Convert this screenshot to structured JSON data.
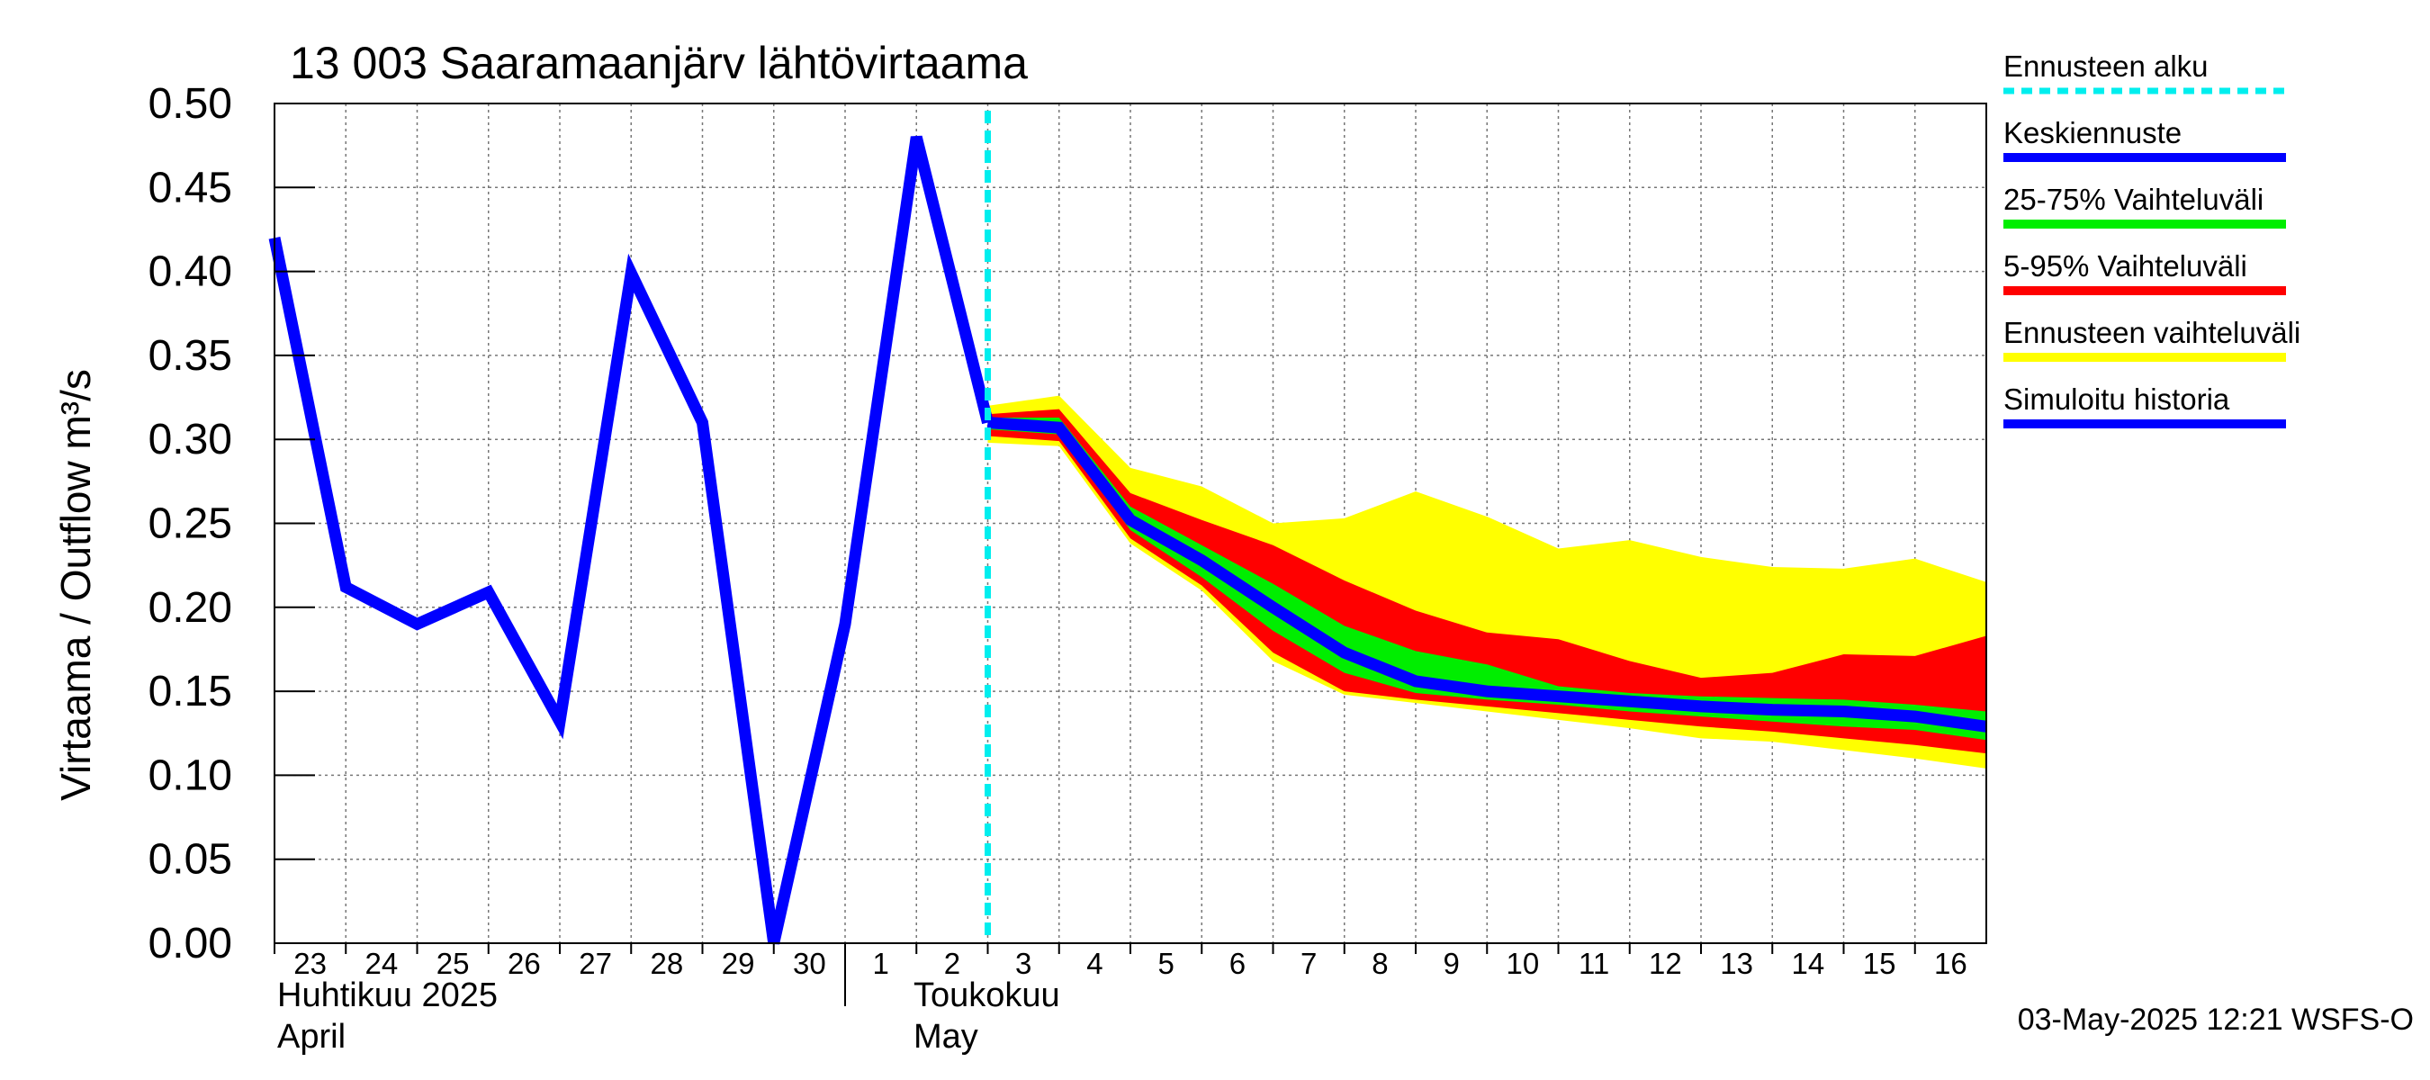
{
  "chart_data": {
    "type": "area",
    "title": "13 003 Saaramaanjärv lähtövirtaama",
    "ylabel": "Virtaama / Outflow    m³/s",
    "ylim": [
      0,
      0.5
    ],
    "yticks": [
      "0.00",
      "0.05",
      "0.10",
      "0.15",
      "0.20",
      "0.25",
      "0.30",
      "0.35",
      "0.40",
      "0.45",
      "0.50"
    ],
    "x_days": [
      "23",
      "24",
      "25",
      "26",
      "27",
      "28",
      "29",
      "30",
      "1",
      "2",
      "3",
      "4",
      "5",
      "6",
      "7",
      "8",
      "9",
      "10",
      "11",
      "12",
      "13",
      "14",
      "15",
      "16"
    ],
    "month_labels": [
      {
        "fi": "Huhtikuu  2025",
        "en": "April"
      },
      {
        "fi": "Toukokuu",
        "en": "May"
      }
    ],
    "forecast_start": "2025-05-03 00:00",
    "grid": true,
    "series": [
      {
        "name": "Simuloitu historia",
        "color": "#0000ff",
        "x": [
          "2025-04-23",
          "2025-04-24",
          "2025-04-25",
          "2025-04-26",
          "2025-04-27",
          "2025-04-28",
          "2025-04-29",
          "2025-04-30",
          "2025-05-01",
          "2025-05-02",
          "2025-05-03"
        ],
        "values": [
          0.42,
          0.212,
          0.19,
          0.209,
          0.132,
          0.399,
          0.31,
          0.0,
          0.19,
          0.48,
          0.31
        ]
      },
      {
        "name": "Keskiennuste",
        "color": "#0000ff",
        "x": [
          "2025-05-03",
          "2025-05-04",
          "2025-05-05",
          "2025-05-06",
          "2025-05-07",
          "2025-05-08",
          "2025-05-09",
          "2025-05-10",
          "2025-05-11",
          "2025-05-12",
          "2025-05-13",
          "2025-05-14",
          "2025-05-15",
          "2025-05-16",
          "2025-05-17"
        ],
        "values": [
          0.31,
          0.307,
          0.252,
          0.228,
          0.2,
          0.173,
          0.156,
          0.15,
          0.147,
          0.144,
          0.141,
          0.139,
          0.138,
          0.135,
          0.129
        ]
      }
    ],
    "bands": [
      {
        "name": "Ennusteen vaihteluväli",
        "color": "#ffff00",
        "x": [
          "2025-05-03",
          "2025-05-04",
          "2025-05-05",
          "2025-05-06",
          "2025-05-07",
          "2025-05-08",
          "2025-05-09",
          "2025-05-10",
          "2025-05-11",
          "2025-05-12",
          "2025-05-13",
          "2025-05-14",
          "2025-05-15",
          "2025-05-16",
          "2025-05-17"
        ],
        "upper": [
          0.32,
          0.326,
          0.283,
          0.272,
          0.25,
          0.253,
          0.269,
          0.254,
          0.235,
          0.24,
          0.23,
          0.224,
          0.223,
          0.229,
          0.215
        ],
        "lower": [
          0.298,
          0.296,
          0.238,
          0.21,
          0.168,
          0.148,
          0.143,
          0.138,
          0.133,
          0.128,
          0.122,
          0.12,
          0.115,
          0.11,
          0.104
        ]
      },
      {
        "name": "5-95% Vaihteluväli",
        "color": "#ff0000",
        "x": [
          "2025-05-03",
          "2025-05-04",
          "2025-05-05",
          "2025-05-06",
          "2025-05-07",
          "2025-05-08",
          "2025-05-09",
          "2025-05-10",
          "2025-05-11",
          "2025-05-12",
          "2025-05-13",
          "2025-05-14",
          "2025-05-15",
          "2025-05-16",
          "2025-05-17"
        ],
        "upper": [
          0.315,
          0.318,
          0.268,
          0.252,
          0.237,
          0.216,
          0.198,
          0.185,
          0.181,
          0.168,
          0.158,
          0.161,
          0.172,
          0.171,
          0.183
        ],
        "lower": [
          0.302,
          0.299,
          0.241,
          0.213,
          0.173,
          0.15,
          0.145,
          0.141,
          0.137,
          0.133,
          0.129,
          0.126,
          0.122,
          0.118,
          0.113
        ]
      },
      {
        "name": "25-75% Vaihteluväli",
        "color": "#00ee00",
        "x": [
          "2025-05-03",
          "2025-05-04",
          "2025-05-05",
          "2025-05-06",
          "2025-05-07",
          "2025-05-08",
          "2025-05-09",
          "2025-05-10",
          "2025-05-11",
          "2025-05-12",
          "2025-05-13",
          "2025-05-14",
          "2025-05-15",
          "2025-05-16",
          "2025-05-17"
        ],
        "upper": [
          0.313,
          0.313,
          0.26,
          0.237,
          0.214,
          0.189,
          0.174,
          0.166,
          0.153,
          0.149,
          0.147,
          0.146,
          0.145,
          0.142,
          0.138
        ],
        "lower": [
          0.306,
          0.303,
          0.246,
          0.218,
          0.186,
          0.161,
          0.149,
          0.145,
          0.142,
          0.138,
          0.135,
          0.132,
          0.129,
          0.127,
          0.121
        ]
      }
    ],
    "legend": {
      "placement": "right",
      "items": [
        {
          "label": "Ennusteen alku",
          "color": "#00eeee",
          "style": "dashed"
        },
        {
          "label": "Keskiennuste",
          "color": "#0000ff",
          "style": "solid"
        },
        {
          "label": "25-75% Vaihteluväli",
          "color": "#00ee00",
          "style": "solid"
        },
        {
          "label": "5-95% Vaihteluväli",
          "color": "#ff0000",
          "style": "solid"
        },
        {
          "label": "Ennusteen vaihteluväli",
          "color": "#ffff00",
          "style": "solid"
        },
        {
          "label": "Simuloitu historia",
          "color": "#0000ff",
          "style": "solid"
        }
      ]
    },
    "footer": "03-May-2025 12:21 WSFS-O"
  }
}
